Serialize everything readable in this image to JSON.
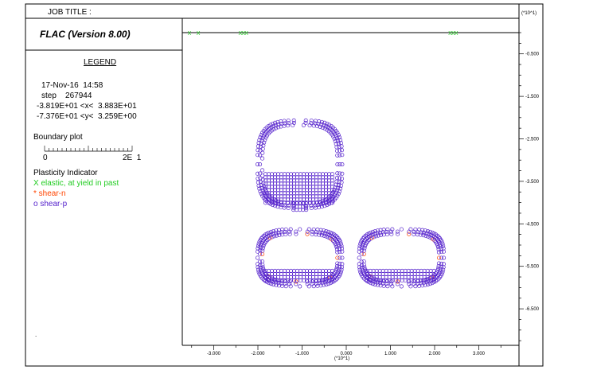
{
  "header": {
    "job_title_label": "JOB TITLE :",
    "unit_top": "(*10^1)"
  },
  "app": {
    "title": "FLAC (Version 8.00)"
  },
  "legend": {
    "heading": "LEGEND",
    "date_time": "17-Nov-16  14:58",
    "step": "step    267944",
    "x_range": "-3.819E+01 <x<  3.883E+01",
    "y_range": "-7.376E+01 <y<  3.259E+00",
    "boundary_label": "Boundary plot",
    "scale_left": "0",
    "scale_right": "2E  1",
    "plasticity_label": "Plasticity Indicator",
    "items": [
      {
        "label": "X elastic, at yield in past",
        "color": "#22cc22"
      },
      {
        "label": "* shear-n",
        "color": "#ff4400"
      },
      {
        "label": "o shear-p",
        "color": "#5522cc"
      }
    ],
    "dot": "."
  },
  "chart_data": {
    "type": "scatter",
    "title": "",
    "x_tick_labels": [
      "-3.000",
      "-2.000",
      "-1.000",
      "0.000",
      "1.000",
      "2.000",
      "3.000"
    ],
    "x_unit": "(*10^1)",
    "y_tick_labels": [
      "-0.500",
      "-1.500",
      "-2.500",
      "-3.500",
      "-4.500",
      "-5.500",
      "-6.500"
    ],
    "y_unit": "(*10^1)",
    "xlim": [
      -3.819,
      3.883
    ],
    "ylim": [
      -7.376,
      0.326
    ],
    "grid": false,
    "elastic_marks": [
      {
        "x": -3.55,
        "y": 0.0
      },
      {
        "x": -3.35,
        "y": 0.0
      },
      {
        "x": -2.4,
        "y": 0.0
      },
      {
        "x": -2.33,
        "y": 0.0
      },
      {
        "x": -2.26,
        "y": 0.0
      },
      {
        "x": 2.35,
        "y": 0.0
      },
      {
        "x": 2.42,
        "y": 0.0
      },
      {
        "x": 2.49,
        "y": 0.0
      }
    ],
    "openings": [
      {
        "name": "upper",
        "cx": -1.05,
        "cy": -3.1,
        "half_width": 0.85,
        "half_height": 0.92
      },
      {
        "name": "lower-left",
        "cx": -1.05,
        "cy": -5.3,
        "half_width": 0.85,
        "half_height": 0.56
      },
      {
        "name": "lower-right",
        "cx": 1.25,
        "cy": -5.3,
        "half_width": 0.85,
        "half_height": 0.56
      }
    ]
  }
}
